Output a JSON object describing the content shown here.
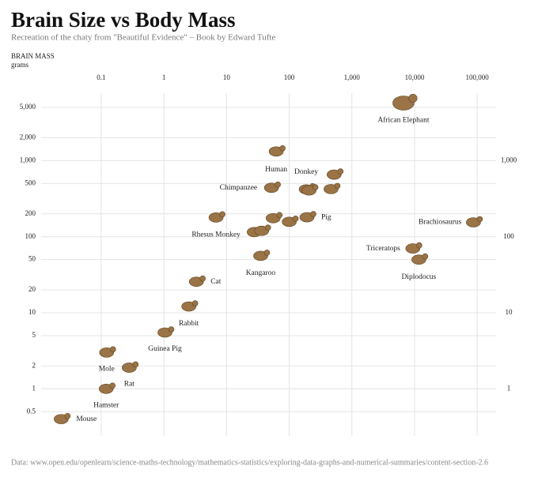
{
  "chart_data": {
    "type": "scatter",
    "title": "Brain Size vs Body Mass",
    "subtitle": "Recreation of the chaty from \"Beautiful Evidence\" – Book by Edward Tufte",
    "y_label": "BRAIN MASS",
    "y_unit": "grams",
    "source": "Data: www.open.edu/openlearn/science-maths-technology/mathematics-statistics/exploring-data-graphs-and-numerical-summaries/content-section-2.6",
    "x": [
      6654,
      87000,
      9400,
      11700,
      62,
      187.1,
      521,
      465,
      207,
      52.16,
      192,
      55.5,
      100,
      27.66,
      36.33,
      6.8,
      35,
      3.3,
      2.5,
      1.04,
      0.122,
      0.28,
      0.12,
      0.023
    ],
    "values": [
      5712,
      154.5,
      70,
      50,
      1320,
      419,
      655,
      423,
      406,
      440,
      180,
      175,
      157,
      115,
      119.5,
      179,
      56,
      25.6,
      12.1,
      5.5,
      3,
      1.9,
      1,
      0.4
    ],
    "labels": [
      "African Elephant",
      "Brachiosaurus",
      "Triceratops",
      "Diplodocus",
      "Human",
      "Donkey",
      null,
      null,
      null,
      "Chimpanzee",
      "Pig",
      null,
      null,
      null,
      null,
      "Rhesus Monkey",
      "Kangaroo",
      "Cat",
      "Rabbit",
      "Guinea Pig",
      "Mole",
      "Rat",
      "Hamster",
      "Mouse"
    ],
    "color": "#9a7446",
    "xscale": "log",
    "yscale": "log",
    "xlim": [
      0.011,
      200000
    ],
    "ylim": [
      0.24,
      7700
    ],
    "y2lim": [
      0.24,
      7700
    ],
    "xticks": [
      0.1,
      1,
      10,
      100,
      {
        "value": 1000,
        "label": "1,000"
      },
      {
        "value": 10000,
        "label": "10,000"
      },
      {
        "value": 100000,
        "label": "100,000"
      }
    ],
    "yticks": [
      0.5,
      1,
      2,
      5,
      10,
      20,
      50,
      100,
      200,
      500,
      {
        "value": 1000,
        "label": "1,000"
      },
      {
        "value": 2000,
        "label": "2,000"
      },
      {
        "value": 5000,
        "label": "5,000"
      }
    ],
    "y2ticks": [
      1,
      10,
      100,
      {
        "value": 1000,
        "label": "1,000"
      }
    ],
    "grid": true
  }
}
